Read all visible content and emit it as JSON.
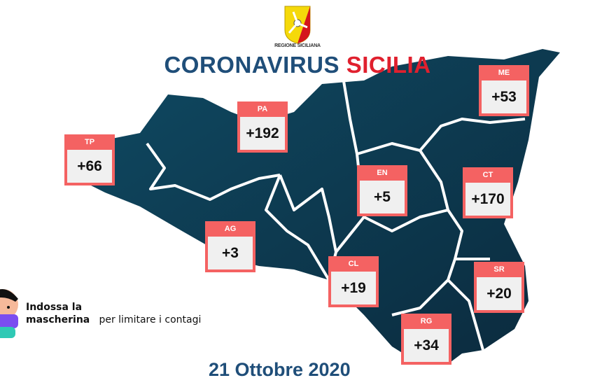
{
  "header": {
    "logo_text": "REGIONE SICILIANA",
    "title_part1": "CORONAVIRUS",
    "title_part2": "SICILIA"
  },
  "colors": {
    "title_blue": "#1f4e79",
    "title_red": "#e0202e",
    "box": "#f46262",
    "map": "#0d3550"
  },
  "provinces": [
    {
      "code": "TP",
      "value": "+66"
    },
    {
      "code": "PA",
      "value": "+192"
    },
    {
      "code": "ME",
      "value": "+53"
    },
    {
      "code": "EN",
      "value": "+5"
    },
    {
      "code": "CT",
      "value": "+170"
    },
    {
      "code": "AG",
      "value": "+3"
    },
    {
      "code": "CL",
      "value": "+19"
    },
    {
      "code": "SR",
      "value": "+20"
    },
    {
      "code": "RG",
      "value": "+34"
    }
  ],
  "note": {
    "bold": "Indossa la mascherina",
    "rest": "per limitare i contagi"
  },
  "date": "21 Ottobre 2020"
}
